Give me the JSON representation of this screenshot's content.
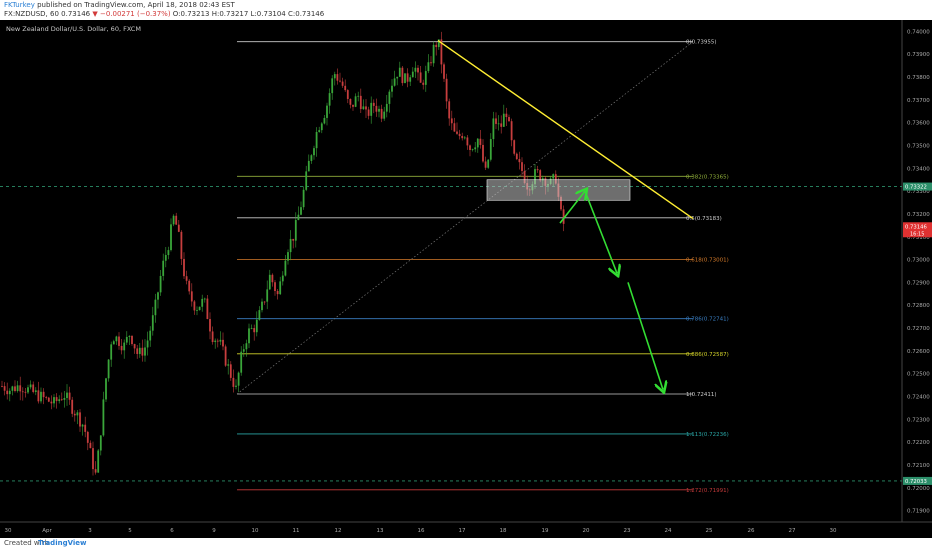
{
  "header": {
    "author": "FKTurkey",
    "published_text": "published on TradingView.com, April 18, 2018 02:43 EST",
    "symbol_line": "FX:NZDUSD, 60",
    "close_price": "0.73146",
    "change": "▼ −0.00271 (−0.37%)",
    "ohlc_o": "O:0.73213",
    "ohlc_h": "H:0.73217",
    "ohlc_l": "L:0.73104",
    "ohlc_c": "C:0.73146"
  },
  "symbol_description": "New Zealand Dollar/U.S. Dollar, 60, FXCM",
  "footer": {
    "created_with": "Created with",
    "logo": "TradingView"
  },
  "colors": {
    "background": "#000000",
    "up_candle": "#3aa63a",
    "down_candle": "#c73e3e",
    "trendline": "#ffee33",
    "arrow": "#33dd33",
    "zone_fill": "#c8c8c8",
    "badge_current": "#e03131",
    "badge_hline": "#2c8f6a"
  },
  "chart_data": {
    "type": "candlestick",
    "symbol": "FX:NZDUSD",
    "timeframe": "60",
    "y_axis": {
      "range": [
        0.7185,
        0.7405
      ],
      "tick_labels": [
        "0.74000",
        "0.73900",
        "0.73800",
        "0.73700",
        "0.73600",
        "0.73500",
        "0.73400",
        "0.73300",
        "0.73200",
        "0.73100",
        "0.73000",
        "0.72900",
        "0.72800",
        "0.72700",
        "0.72600",
        "0.72500",
        "0.72400",
        "0.72300",
        "0.72200",
        "0.72100",
        "0.72000",
        "0.71900"
      ]
    },
    "x_axis": {
      "tick_labels": [
        "30",
        "Apr",
        "3",
        "5",
        "6",
        "9",
        "10",
        "11",
        "12",
        "13",
        "16",
        "17",
        "18",
        "19",
        "20",
        "23",
        "24",
        "25",
        "26",
        "27",
        "30"
      ]
    },
    "price_path": [
      [
        0,
        0.7245
      ],
      [
        10,
        0.7243
      ],
      [
        20,
        0.7245
      ],
      [
        32,
        0.7242
      ],
      [
        44,
        0.7239
      ],
      [
        54,
        0.7237
      ],
      [
        64,
        0.7241
      ],
      [
        74,
        0.7234
      ],
      [
        84,
        0.7227
      ],
      [
        92,
        0.7212
      ],
      [
        96,
        0.7205
      ],
      [
        100,
        0.7222
      ],
      [
        106,
        0.7248
      ],
      [
        112,
        0.7267
      ],
      [
        118,
        0.7265
      ],
      [
        124,
        0.7262
      ],
      [
        130,
        0.7268
      ],
      [
        138,
        0.7258
      ],
      [
        146,
        0.7262
      ],
      [
        154,
        0.7276
      ],
      [
        162,
        0.7296
      ],
      [
        168,
        0.7306
      ],
      [
        174,
        0.7319
      ],
      [
        178,
        0.7312
      ],
      [
        182,
        0.7299
      ],
      [
        188,
        0.7285
      ],
      [
        196,
        0.7279
      ],
      [
        204,
        0.7282
      ],
      [
        212,
        0.7267
      ],
      [
        220,
        0.7263
      ],
      [
        228,
        0.7253
      ],
      [
        236,
        0.7243
      ],
      [
        242,
        0.7259
      ],
      [
        248,
        0.7268
      ],
      [
        256,
        0.7271
      ],
      [
        264,
        0.7282
      ],
      [
        270,
        0.7293
      ],
      [
        278,
        0.7284
      ],
      [
        286,
        0.7304
      ],
      [
        294,
        0.7311
      ],
      [
        302,
        0.7326
      ],
      [
        310,
        0.7345
      ],
      [
        318,
        0.7358
      ],
      [
        326,
        0.7366
      ],
      [
        334,
        0.7382
      ],
      [
        342,
        0.7377
      ],
      [
        350,
        0.7366
      ],
      [
        358,
        0.7372
      ],
      [
        366,
        0.7363
      ],
      [
        374,
        0.7368
      ],
      [
        382,
        0.7364
      ],
      [
        390,
        0.7376
      ],
      [
        398,
        0.7383
      ],
      [
        406,
        0.7378
      ],
      [
        414,
        0.7386
      ],
      [
        420,
        0.7376
      ],
      [
        428,
        0.7383
      ],
      [
        434,
        0.7393
      ],
      [
        438,
        0.7396
      ],
      [
        442,
        0.7385
      ],
      [
        448,
        0.7363
      ],
      [
        456,
        0.7353
      ],
      [
        464,
        0.7356
      ],
      [
        470,
        0.7349
      ],
      [
        478,
        0.7353
      ],
      [
        486,
        0.7337
      ],
      [
        494,
        0.7362
      ],
      [
        500,
        0.7357
      ],
      [
        506,
        0.7366
      ],
      [
        514,
        0.7344
      ],
      [
        522,
        0.7339
      ],
      [
        528,
        0.7332
      ],
      [
        536,
        0.7338
      ],
      [
        544,
        0.7336
      ],
      [
        550,
        0.7333
      ],
      [
        556,
        0.7336
      ],
      [
        560,
        0.7321
      ],
      [
        564,
        0.7315
      ]
    ],
    "fibonacci": [
      {
        "label": "0(0.73955)",
        "value": 0.73955
      },
      {
        "label": "0.382(0.73365)",
        "value": 0.73365
      },
      {
        "label": "0.5(0.73183)",
        "value": 0.73183
      },
      {
        "label": "0.618(0.73001)",
        "value": 0.73001
      },
      {
        "label": "0.786(0.72741)",
        "value": 0.72741
      },
      {
        "label": "0.886(0.72587)",
        "value": 0.72587
      },
      {
        "label": "1(0.72411)",
        "value": 0.72411
      },
      {
        "label": "1.113(0.72236)",
        "value": 0.72236
      },
      {
        "label": "1.272(0.71991)",
        "value": 0.71991
      }
    ],
    "horizontal_lines": [
      {
        "value": 0.7332,
        "label": "0.73322"
      },
      {
        "value": 0.7203,
        "label": "0.72033"
      }
    ],
    "current_price": {
      "value": 0.73146,
      "label": "0.73146",
      "countdown": "16:15"
    },
    "trendline": {
      "from": [
        438,
        0.7396
      ],
      "to": [
        693,
        0.7318
      ]
    },
    "supply_zone": {
      "price_top": 0.7335,
      "price_bottom": 0.7326
    },
    "projection_arrows": [
      {
        "from": [
          560,
          0.7316
        ],
        "to": [
          585,
          0.733
        ]
      },
      {
        "from": [
          585,
          0.733
        ],
        "to": [
          617,
          0.7294
        ]
      },
      {
        "from": [
          628,
          0.729
        ],
        "to": [
          663,
          0.7243
        ]
      }
    ]
  }
}
